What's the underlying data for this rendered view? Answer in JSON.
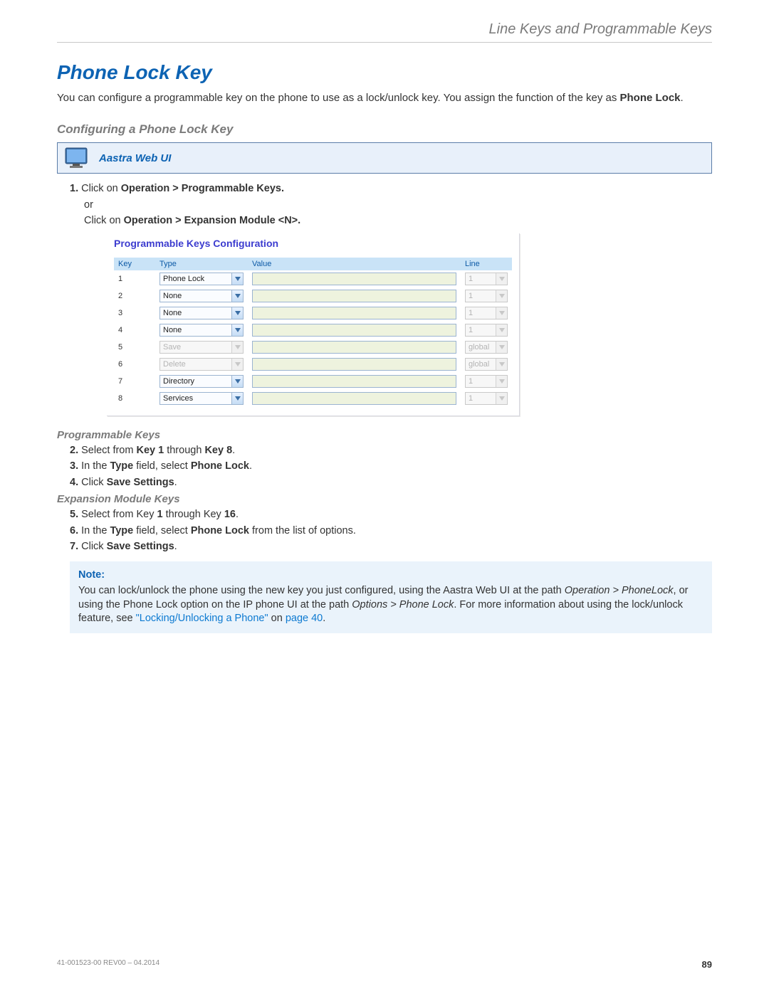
{
  "header": {
    "section": "Line Keys and Programmable Keys"
  },
  "title": "Phone Lock Key",
  "intro": {
    "pre": "You can configure a programmable key on the phone to use as a lock/unlock key. You assign the function of the key as ",
    "bold": "Phone Lock",
    "post": "."
  },
  "configHeading": "Configuring a Phone Lock Key",
  "webui": {
    "label": "Aastra Web UI"
  },
  "step1": {
    "num": "1.",
    "prefix": "Click on ",
    "bold1": "Operation > Programmable Keys.",
    "or": "or",
    "prefix2": "Click on ",
    "bold2": "Operation > Expansion Module <N>."
  },
  "screenshot": {
    "title": "Programmable Keys Configuration",
    "headers": {
      "key": "Key",
      "type": "Type",
      "value": "Value",
      "line": "Line"
    },
    "rows": [
      {
        "key": "1",
        "type": "Phone Lock",
        "line": "1",
        "typeDisabled": false,
        "lineDisabled": true
      },
      {
        "key": "2",
        "type": "None",
        "line": "1",
        "typeDisabled": false,
        "lineDisabled": true
      },
      {
        "key": "3",
        "type": "None",
        "line": "1",
        "typeDisabled": false,
        "lineDisabled": true
      },
      {
        "key": "4",
        "type": "None",
        "line": "1",
        "typeDisabled": false,
        "lineDisabled": true
      },
      {
        "key": "5",
        "type": "Save",
        "line": "global",
        "typeDisabled": true,
        "lineDisabled": true
      },
      {
        "key": "6",
        "type": "Delete",
        "line": "global",
        "typeDisabled": true,
        "lineDisabled": true
      },
      {
        "key": "7",
        "type": "Directory",
        "line": "1",
        "typeDisabled": false,
        "lineDisabled": true
      },
      {
        "key": "8",
        "type": "Services",
        "line": "1",
        "typeDisabled": false,
        "lineDisabled": true
      }
    ]
  },
  "progKeys": {
    "heading": "Programmable Keys",
    "s2": {
      "num": "2.",
      "a": "Select from ",
      "b": "Key 1",
      "c": " through ",
      "d": "Key 8",
      "e": "."
    },
    "s3": {
      "num": "3.",
      "a": "In the ",
      "b": "Type",
      "c": " field, select ",
      "d": "Phone Lock",
      "e": "."
    },
    "s4": {
      "num": "4.",
      "a": "Click ",
      "b": "Save Settings",
      "c": "."
    }
  },
  "expKeys": {
    "heading": "Expansion Module Keys",
    "s5": {
      "num": "5.",
      "a": "Select from Key ",
      "b": "1",
      "c": " through Key ",
      "d": "16",
      "e": "."
    },
    "s6": {
      "num": "6.",
      "a": "In the ",
      "b": "Type",
      "c": " field, select ",
      "d": "Phone Lock",
      "e": " from the list of options."
    },
    "s7": {
      "num": "7.",
      "a": "Click ",
      "b": "Save Settings",
      "c": "."
    }
  },
  "note": {
    "title": "Note:",
    "t1": "You can lock/unlock the phone using the new key you just configured, using the Aastra Web UI at the path ",
    "i1": "Operation > PhoneLock",
    "t2": ", or using the Phone Lock option on the IP phone UI at the path ",
    "i2": "Options > Phone Lock",
    "t3": ". For more information about using the lock/unlock feature, see ",
    "link1": "\"Locking/Unlocking a Phone\"",
    "t4": " on ",
    "link2": "page 40",
    "t5": "."
  },
  "footer": {
    "docid": "41-001523-00 REV00 – 04.2014",
    "page": "89"
  }
}
